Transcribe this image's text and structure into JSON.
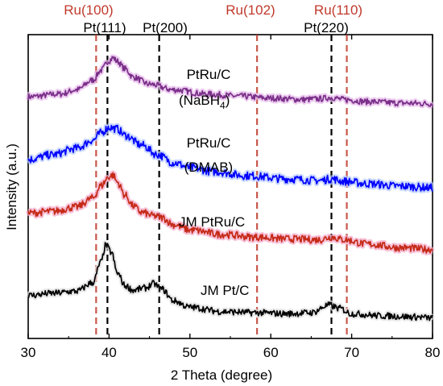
{
  "chart_data": {
    "type": "line",
    "title": "",
    "xlabel": "2 Theta (degree)",
    "ylabel": "Intensity (a.u.)",
    "xlim": [
      30,
      80
    ],
    "xticks": [
      30,
      40,
      50,
      60,
      70,
      80
    ],
    "y_ticks_shown": false,
    "grid": false,
    "legend": "none (series labelled inline on the plot)",
    "colors": {
      "axis": "#000000",
      "ru_reference": "#c0392b",
      "pt_reference": "#000000",
      "ru_label": "#c0392b",
      "pt_label": "#000000"
    },
    "reference_lines": [
      {
        "label": "Ru(100)",
        "x": 38.4,
        "color": "#c0392b",
        "label_row": "top"
      },
      {
        "label": "Pt(111)",
        "x": 39.8,
        "color": "#000000",
        "label_row": "second"
      },
      {
        "label": "Pt(200)",
        "x": 46.2,
        "color": "#000000",
        "label_row": "second"
      },
      {
        "label": "Ru(102)",
        "x": 58.3,
        "color": "#c0392b",
        "label_row": "top"
      },
      {
        "label": "Pt(220)",
        "x": 67.5,
        "color": "#000000",
        "label_row": "second"
      },
      {
        "label": "Ru(110)",
        "x": 69.4,
        "color": "#c0392b",
        "label_row": "top"
      }
    ],
    "series": [
      {
        "name": "PtRu/C (NaBH4)",
        "label_lines": [
          "PtRu/C",
          "(NaBH",
          "4",
          ")"
        ],
        "color": "#7b2f8a",
        "glow": "#e6b8ea",
        "noise": 1.6,
        "points": [
          [
            30,
            5.2
          ],
          [
            34,
            5.6
          ],
          [
            36,
            6.2
          ],
          [
            38,
            7.6
          ],
          [
            39,
            9.0
          ],
          [
            40,
            10.4
          ],
          [
            40.5,
            10.8
          ],
          [
            41,
            10.3
          ],
          [
            42,
            9.2
          ],
          [
            43,
            8.0
          ],
          [
            45,
            7.0
          ],
          [
            48,
            6.2
          ],
          [
            52,
            5.6
          ],
          [
            56,
            5.3
          ],
          [
            60,
            5.0
          ],
          [
            64,
            4.8
          ],
          [
            66,
            4.9
          ],
          [
            67.5,
            5.1
          ],
          [
            69,
            4.8
          ],
          [
            72,
            4.5
          ],
          [
            76,
            4.3
          ],
          [
            80,
            4.2
          ]
        ]
      },
      {
        "name": "PtRu/C (DMAB)",
        "label_lines": [
          "PtRu/C",
          "(DMAB)"
        ],
        "color": "#0000ff",
        "glow": "#b3c7ff",
        "noise": 1.8,
        "points": [
          [
            30,
            5.2
          ],
          [
            33,
            5.8
          ],
          [
            36,
            6.6
          ],
          [
            38,
            7.6
          ],
          [
            39,
            8.5
          ],
          [
            40,
            9.2
          ],
          [
            41,
            9.0
          ],
          [
            42,
            8.2
          ],
          [
            44,
            7.0
          ],
          [
            46,
            5.8
          ],
          [
            48,
            4.8
          ],
          [
            50,
            4.2
          ],
          [
            53,
            3.7
          ],
          [
            57,
            3.2
          ],
          [
            62,
            2.8
          ],
          [
            66,
            2.6
          ],
          [
            67.5,
            2.8
          ],
          [
            69,
            2.5
          ],
          [
            72,
            2.2
          ],
          [
            76,
            1.9
          ],
          [
            80,
            1.7
          ]
        ]
      },
      {
        "name": "JM PtRu/C",
        "label_lines": [
          "JM PtRu/C"
        ],
        "color": "#c62a17",
        "glow": "#f4a6c8",
        "noise": 1.5,
        "points": [
          [
            30,
            5.5
          ],
          [
            33,
            5.7
          ],
          [
            36,
            6.2
          ],
          [
            38,
            7.2
          ],
          [
            39,
            8.6
          ],
          [
            40,
            9.6
          ],
          [
            40.5,
            9.8
          ],
          [
            41,
            9.0
          ],
          [
            42,
            7.5
          ],
          [
            43,
            6.3
          ],
          [
            44,
            5.6
          ],
          [
            45.5,
            5.2
          ],
          [
            46.5,
            5.0
          ],
          [
            48,
            4.2
          ],
          [
            50,
            3.6
          ],
          [
            54,
            3.1
          ],
          [
            58,
            2.8
          ],
          [
            62,
            2.6
          ],
          [
            66,
            2.5
          ],
          [
            67.5,
            2.8
          ],
          [
            69,
            2.5
          ],
          [
            72,
            2.0
          ],
          [
            76,
            1.6
          ],
          [
            80,
            1.4
          ]
        ]
      },
      {
        "name": "JM Pt/C",
        "label_lines": [
          "JM Pt/C"
        ],
        "color": "#000000",
        "glow": "#e0e0e0",
        "noise": 1.1,
        "points": [
          [
            30,
            2.5
          ],
          [
            33,
            2.7
          ],
          [
            36,
            2.9
          ],
          [
            38,
            3.7
          ],
          [
            39,
            5.6
          ],
          [
            39.6,
            7.2
          ],
          [
            40.3,
            6.5
          ],
          [
            41,
            4.6
          ],
          [
            42,
            3.4
          ],
          [
            43,
            3.0
          ],
          [
            44.5,
            3.2
          ],
          [
            45.5,
            3.6
          ],
          [
            46.5,
            3.1
          ],
          [
            48,
            2.0
          ],
          [
            50,
            1.4
          ],
          [
            54,
            1.0
          ],
          [
            58,
            0.9
          ],
          [
            62,
            0.8
          ],
          [
            65,
            0.9
          ],
          [
            67.2,
            1.6
          ],
          [
            68.5,
            1.3
          ],
          [
            70,
            0.8
          ],
          [
            74,
            0.6
          ],
          [
            78,
            0.5
          ],
          [
            80,
            0.4
          ]
        ]
      }
    ]
  }
}
